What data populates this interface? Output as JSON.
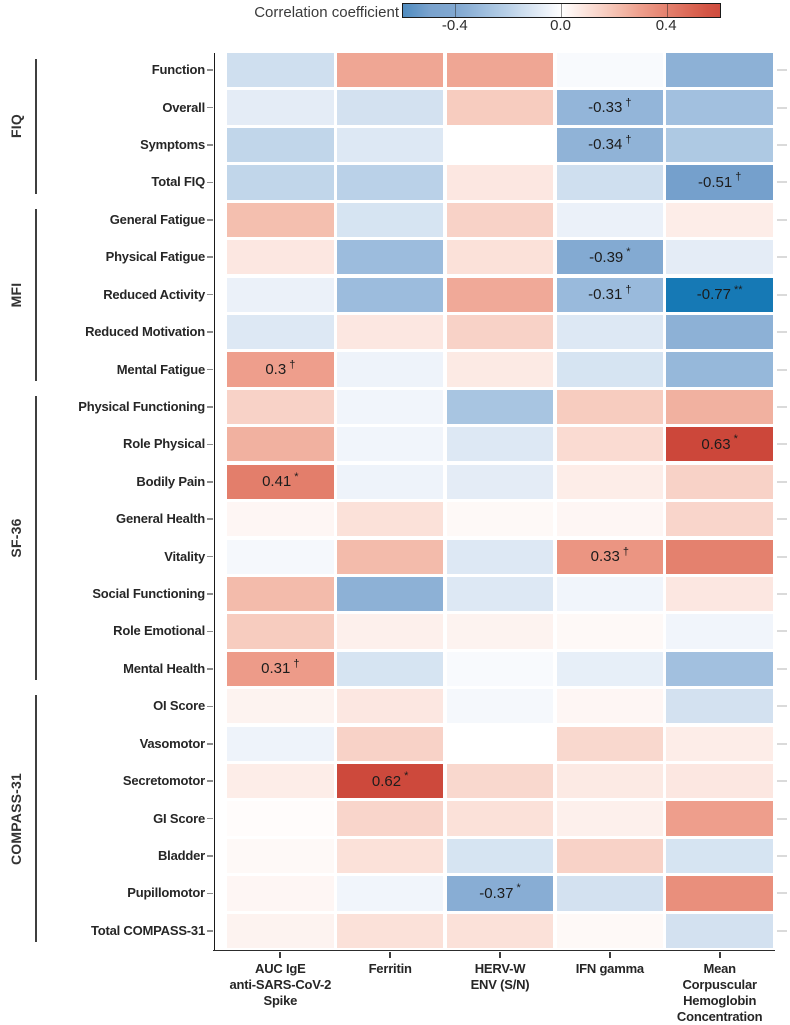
{
  "figure": {
    "description": "Correlation heatmap of questionnaire scores vs laboratory markers"
  },
  "colorbar": {
    "label": "Correlation coefficient",
    "tick_labels": [
      "-0.4",
      "0.0",
      "0.4"
    ],
    "tick_values": [
      -0.4,
      0.0,
      0.4
    ],
    "range": [
      -0.6,
      0.6
    ],
    "negative_end_color": "#2a7fb8",
    "positive_end_color": "#cf4c3e",
    "midpoint_color": "#ffffff"
  },
  "chart_data": {
    "type": "heatmap",
    "title": "",
    "colorbar_label": "Correlation coefficient",
    "legend_position": "top",
    "grid": "off",
    "color_scale": {
      "min": -0.8,
      "mid": 0,
      "max": 0.7,
      "min_color": "#0d77b4",
      "mid_color": "#ffffff",
      "max_color": "#c23a2f"
    },
    "columns": [
      "AUC IgE\nanti-SARS-CoV-2\nSpike",
      "Ferritin",
      "HERV-W\nENV (S/N)",
      "IFN gamma",
      "Mean\nCorpuscular\nHemoglobin\nConcentration"
    ],
    "rows": [
      "Function",
      "Overall",
      "Symptoms",
      "Total FIQ",
      "General Fatigue",
      "Physical Fatigue",
      "Reduced Activity",
      "Reduced Motivation",
      "Mental Fatigue",
      "Physical Functioning",
      "Role Physical",
      "Bodily Pain",
      "General Health",
      "Vitality",
      "Social Functioning",
      "Role Emotional",
      "Mental Health",
      "OI Score",
      "Vasomotor",
      "Secretomotor",
      "GI Score",
      "Bladder",
      "Pupillomotor",
      "Total COMPASS-31"
    ],
    "row_groups": [
      {
        "label": "FIQ",
        "first_row": 0,
        "last_row": 3
      },
      {
        "label": "MFI",
        "first_row": 4,
        "last_row": 8
      },
      {
        "label": "SF-36",
        "first_row": 9,
        "last_row": 16
      },
      {
        "label": "COMPASS-31",
        "first_row": 17,
        "last_row": 23
      }
    ],
    "values": [
      [
        -0.14,
        0.28,
        0.28,
        -0.02,
        -0.35
      ],
      [
        -0.08,
        -0.13,
        0.17,
        -0.33,
        -0.28
      ],
      [
        -0.18,
        -0.1,
        0.0,
        -0.34,
        -0.24
      ],
      [
        -0.18,
        -0.2,
        0.08,
        -0.14,
        -0.51
      ],
      [
        0.21,
        -0.12,
        0.15,
        -0.06,
        0.06
      ],
      [
        0.08,
        -0.3,
        0.1,
        -0.39,
        -0.08
      ],
      [
        -0.06,
        -0.3,
        0.27,
        -0.31,
        -0.77
      ],
      [
        -0.1,
        0.08,
        0.15,
        -0.1,
        -0.35
      ],
      [
        0.3,
        -0.05,
        0.07,
        -0.12,
        -0.32
      ],
      [
        0.15,
        -0.04,
        -0.26,
        0.17,
        0.25
      ],
      [
        0.25,
        -0.04,
        -0.1,
        0.12,
        0.63
      ],
      [
        0.41,
        -0.05,
        -0.08,
        0.06,
        0.15
      ],
      [
        0.03,
        0.1,
        0.02,
        0.03,
        0.14
      ],
      [
        -0.03,
        0.22,
        -0.1,
        0.33,
        0.4
      ],
      [
        0.22,
        -0.35,
        -0.1,
        -0.04,
        0.08
      ],
      [
        0.17,
        0.05,
        0.04,
        0.02,
        -0.04
      ],
      [
        0.31,
        -0.12,
        -0.02,
        -0.07,
        -0.28
      ],
      [
        0.04,
        0.08,
        -0.03,
        0.03,
        -0.13
      ],
      [
        -0.05,
        0.15,
        0.0,
        0.13,
        0.06
      ],
      [
        0.06,
        0.62,
        0.13,
        0.07,
        0.08
      ],
      [
        0.01,
        0.14,
        0.1,
        0.05,
        0.3
      ],
      [
        0.02,
        0.1,
        -0.12,
        0.15,
        -0.12
      ],
      [
        0.03,
        -0.04,
        -0.37,
        -0.13,
        0.35
      ],
      [
        0.04,
        0.1,
        0.1,
        0.02,
        -0.13
      ]
    ],
    "annotations": [
      {
        "row": 1,
        "col": 3,
        "text": "-0.33",
        "symbol": "†"
      },
      {
        "row": 2,
        "col": 3,
        "text": "-0.34",
        "symbol": "†"
      },
      {
        "row": 3,
        "col": 4,
        "text": "-0.51",
        "symbol": "†"
      },
      {
        "row": 5,
        "col": 3,
        "text": "-0.39",
        "symbol": "*"
      },
      {
        "row": 6,
        "col": 3,
        "text": "-0.31",
        "symbol": "†"
      },
      {
        "row": 6,
        "col": 4,
        "text": "-0.77",
        "symbol": "**"
      },
      {
        "row": 8,
        "col": 0,
        "text": "0.3",
        "symbol": "†"
      },
      {
        "row": 10,
        "col": 4,
        "text": "0.63",
        "symbol": "*"
      },
      {
        "row": 11,
        "col": 0,
        "text": "0.41",
        "symbol": "*"
      },
      {
        "row": 13,
        "col": 3,
        "text": "0.33",
        "symbol": "†"
      },
      {
        "row": 16,
        "col": 0,
        "text": "0.31",
        "symbol": "†"
      },
      {
        "row": 19,
        "col": 1,
        "text": "0.62",
        "symbol": "*"
      },
      {
        "row": 22,
        "col": 2,
        "text": "-0.37",
        "symbol": "*"
      }
    ]
  }
}
